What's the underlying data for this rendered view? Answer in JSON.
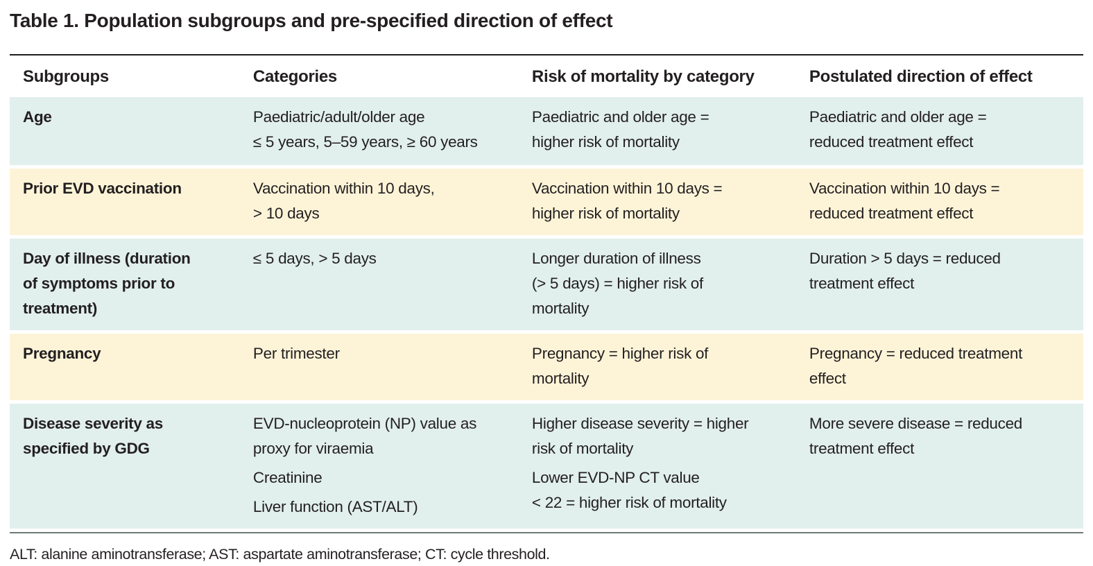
{
  "title": "Table 1. Population subgroups and pre-specified direction of effect",
  "columns": {
    "subgroups": "Subgroups",
    "categories": "Categories",
    "risk": "Risk of mortality by category",
    "direction": "Postulated direction of effect"
  },
  "rows": [
    {
      "subgroup": "Age",
      "categories": [
        "Paediatric/adult/older age\n≤ 5 years, 5–59 years, ≥ 60 years"
      ],
      "risk": [
        "Paediatric and older age =\nhigher risk of mortality"
      ],
      "direction": [
        "Paediatric and older age =\nreduced treatment effect"
      ]
    },
    {
      "subgroup": "Prior EVD vaccination",
      "categories": [
        "Vaccination within 10 days,\n> 10 days"
      ],
      "risk": [
        "Vaccination within 10 days =\nhigher risk of mortality"
      ],
      "direction": [
        "Vaccination within 10 days =\nreduced treatment effect"
      ]
    },
    {
      "subgroup": "Day of illness (duration\nof symptoms prior to\ntreatment)",
      "categories": [
        "≤ 5 days, > 5 days"
      ],
      "risk": [
        "Longer duration of illness\n(> 5 days) = higher risk of\nmortality"
      ],
      "direction": [
        "Duration > 5 days = reduced\ntreatment effect"
      ]
    },
    {
      "subgroup": "Pregnancy",
      "categories": [
        "Per trimester"
      ],
      "risk": [
        "Pregnancy = higher risk of\nmortality"
      ],
      "direction": [
        "Pregnancy = reduced treatment\neffect"
      ]
    },
    {
      "subgroup": "Disease severity as\nspecified by GDG",
      "categories": [
        "EVD-nucleoprotein (NP) value as\nproxy for viraemia",
        "Creatinine",
        "Liver function (AST/ALT)"
      ],
      "risk": [
        "Higher disease severity = higher\nrisk of mortality",
        "Lower EVD-NP CT value\n< 22 = higher risk of mortality"
      ],
      "direction": [
        "More severe disease = reduced\ntreatment effect"
      ]
    }
  ],
  "footnote": "ALT: alanine aminotransferase; AST: aspartate aminotransferase; CT: cycle threshold.",
  "colors": {
    "row_teal": "#e1efed",
    "row_cream": "#fdf4d8",
    "text": "#231f20",
    "rule_top": "#1d1d1b",
    "rule_bottom": "#6d7a78"
  }
}
